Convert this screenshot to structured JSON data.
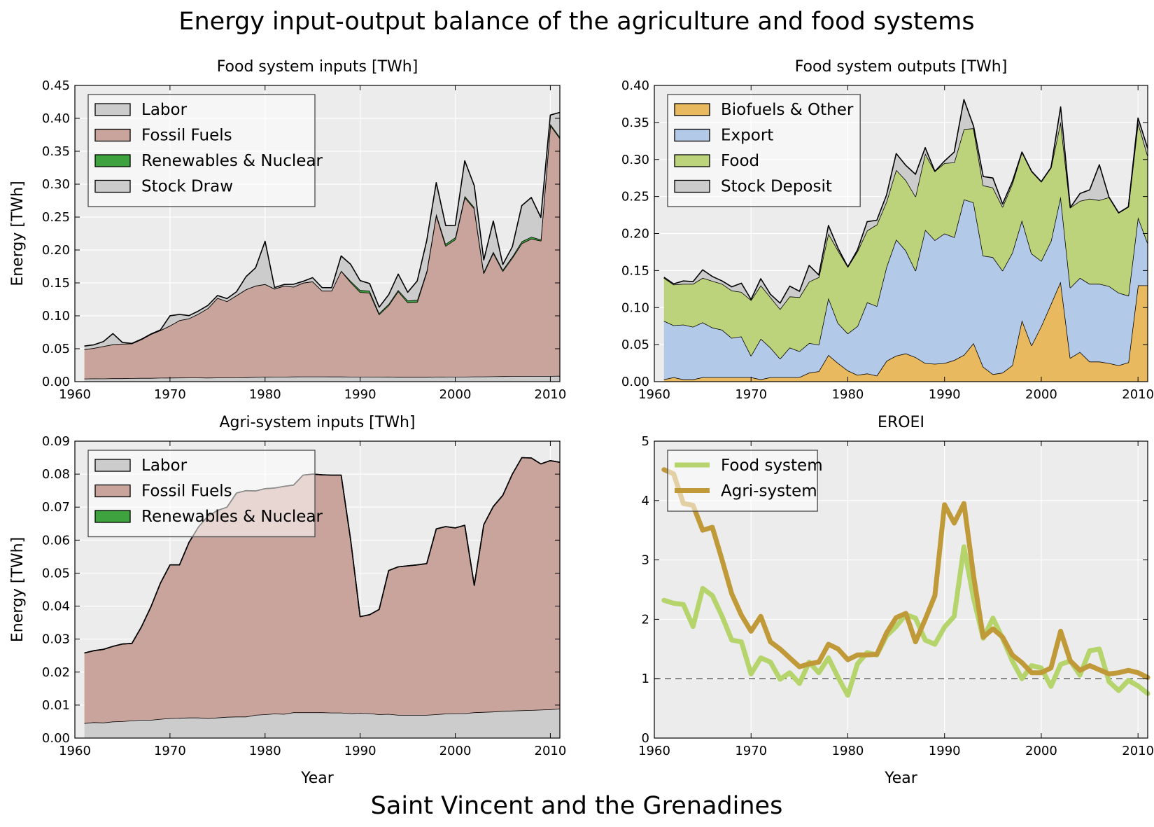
{
  "figure": {
    "title": "Energy input-output balance of the agriculture and food systems",
    "footer": "Saint Vincent and the Grenadines"
  },
  "chart_data": [
    {
      "type": "area",
      "title": "Food system inputs [TWh]",
      "xlabel": "",
      "ylabel": "Energy [TWh]",
      "xlim": [
        1960,
        2011
      ],
      "ylim": [
        0,
        0.45
      ],
      "xticks": [
        1960,
        1970,
        1980,
        1990,
        2000,
        2010
      ],
      "yticks": [
        "0.00",
        "0.05",
        "0.10",
        "0.15",
        "0.20",
        "0.25",
        "0.30",
        "0.35",
        "0.40",
        "0.45"
      ],
      "stacked": true,
      "legend_position": "upper-left",
      "x": [
        1961,
        1962,
        1963,
        1964,
        1965,
        1966,
        1967,
        1968,
        1969,
        1970,
        1971,
        1972,
        1973,
        1974,
        1975,
        1976,
        1977,
        1978,
        1979,
        1980,
        1981,
        1982,
        1983,
        1984,
        1985,
        1986,
        1987,
        1988,
        1989,
        1990,
        1991,
        1992,
        1993,
        1994,
        1995,
        1996,
        1997,
        1998,
        1999,
        2000,
        2001,
        2002,
        2003,
        2004,
        2005,
        2006,
        2007,
        2008,
        2009,
        2010,
        2011
      ],
      "series": [
        {
          "name": "Labor",
          "color": "#cccccc",
          "values": [
            0.0045,
            0.0048,
            0.0047,
            0.005,
            0.005,
            0.0053,
            0.0055,
            0.0055,
            0.0058,
            0.006,
            0.0061,
            0.0062,
            0.0062,
            0.006,
            0.0062,
            0.0063,
            0.0064,
            0.0065,
            0.007,
            0.0072,
            0.0073,
            0.0073,
            0.0077,
            0.0078,
            0.0078,
            0.0078,
            0.0077,
            0.0077,
            0.0075,
            0.0075,
            0.0075,
            0.0072,
            0.0073,
            0.007,
            0.007,
            0.007,
            0.007,
            0.0072,
            0.0074,
            0.0075,
            0.0075,
            0.0078,
            0.0078,
            0.008,
            0.0082,
            0.0083,
            0.0084,
            0.0085,
            0.0085,
            0.0085,
            0.0087
          ]
        },
        {
          "name": "Fossil Fuels",
          "color": "#c9a49c",
          "values": [
            0.0445,
            0.0462,
            0.049,
            0.0515,
            0.0525,
            0.0525,
            0.0585,
            0.0665,
            0.0722,
            0.079,
            0.087,
            0.0898,
            0.0968,
            0.1055,
            0.1208,
            0.1157,
            0.1246,
            0.1335,
            0.1385,
            0.1408,
            0.1337,
            0.1382,
            0.1363,
            0.1422,
            0.1442,
            0.1302,
            0.1303,
            0.1605,
            0.1435,
            0.1285,
            0.1275,
            0.0948,
            0.1087,
            0.1303,
            0.1133,
            0.114,
            0.1595,
            0.2458,
            0.1988,
            0.2085,
            0.2725,
            0.2552,
            0.157,
            0.1875,
            0.1598,
            0.1797,
            0.2016,
            0.2085,
            0.2055,
            0.381,
            0.361
          ]
        },
        {
          "name": "Renewables & Nuclear",
          "color": "#3ea33e",
          "values": [
            0.0001,
            0.0001,
            0.0001,
            0.0001,
            0.0001,
            0.0001,
            0.0001,
            0.0001,
            0.0001,
            0.0001,
            0.0001,
            0.0001,
            0.0001,
            0.0001,
            0.0001,
            0.0001,
            0.0001,
            0.0001,
            0.0002,
            0.0002,
            0.0002,
            0.0002,
            0.0002,
            0.0002,
            0.0002,
            0.0002,
            0.0002,
            0.0003,
            0.002,
            0.003,
            0.003,
            0.002,
            0.002,
            0.002,
            0.003,
            0.003,
            0.002,
            0.002,
            0.003,
            0.003,
            0.002,
            0.002,
            0.002,
            0.002,
            0.002,
            0.002,
            0.003,
            0.003,
            0.002,
            0.002,
            0.002
          ]
        },
        {
          "name": "Stock Draw",
          "color": "#cccccc",
          "values": [
            0.0049,
            0.0049,
            0.0072,
            0.0164,
            0.002,
            0.0002,
            0.0004,
            0.0002,
            0.0005,
            0.015,
            0.0089,
            0.0042,
            0.0042,
            0.0042,
            0.0037,
            0.0041,
            0.0055,
            0.0195,
            0.0273,
            0.0651,
            0.0018,
            0.002,
            0.0038,
            0.0022,
            0.0058,
            0.0047,
            0.0046,
            0.0225,
            0.0252,
            0.0145,
            0.011,
            0.0092,
            0.014,
            0.0241,
            0.0124,
            0.029,
            0.046,
            0.0473,
            0.0278,
            0.0183,
            0.0536,
            0.0328,
            0.018,
            0.0465,
            0.008,
            0.0149,
            0.0545,
            0.0598,
            0.0335,
            0.0135,
            0.0373
          ]
        }
      ]
    },
    {
      "type": "area",
      "title": "Food system outputs [TWh]",
      "xlabel": "",
      "ylabel": "",
      "xlim": [
        1960,
        2011
      ],
      "ylim": [
        0,
        0.4
      ],
      "xticks": [
        1960,
        1970,
        1980,
        1990,
        2000,
        2010
      ],
      "yticks": [
        "0.00",
        "0.05",
        "0.10",
        "0.15",
        "0.20",
        "0.25",
        "0.30",
        "0.35",
        "0.40"
      ],
      "stacked": true,
      "legend_position": "upper-left",
      "x": [
        1961,
        1962,
        1963,
        1964,
        1965,
        1966,
        1967,
        1968,
        1969,
        1970,
        1971,
        1972,
        1973,
        1974,
        1975,
        1976,
        1977,
        1978,
        1979,
        1980,
        1981,
        1982,
        1983,
        1984,
        1985,
        1986,
        1987,
        1988,
        1989,
        1990,
        1991,
        1992,
        1993,
        1994,
        1995,
        1996,
        1997,
        1998,
        1999,
        2000,
        2001,
        2002,
        2003,
        2004,
        2005,
        2006,
        2007,
        2008,
        2009,
        2010,
        2011
      ],
      "series": [
        {
          "name": "Biofuels & Other",
          "color": "#e8b95e",
          "values": [
            0.003,
            0.006,
            0.003,
            0.003,
            0.006,
            0.006,
            0.006,
            0.006,
            0.006,
            0.006,
            0.003,
            0.006,
            0.006,
            0.006,
            0.006,
            0.012,
            0.014,
            0.036,
            0.025,
            0.015,
            0.009,
            0.011,
            0.008,
            0.028,
            0.035,
            0.038,
            0.033,
            0.025,
            0.024,
            0.025,
            0.029,
            0.036,
            0.052,
            0.02,
            0.01,
            0.012,
            0.022,
            0.083,
            0.049,
            0.075,
            0.105,
            0.135,
            0.032,
            0.04,
            0.027,
            0.027,
            0.025,
            0.022,
            0.026,
            0.13,
            0.13
          ]
        },
        {
          "name": "Export",
          "color": "#b3c9e8",
          "values": [
            0.079,
            0.07,
            0.074,
            0.071,
            0.074,
            0.067,
            0.064,
            0.053,
            0.055,
            0.029,
            0.055,
            0.04,
            0.025,
            0.04,
            0.035,
            0.04,
            0.036,
            0.077,
            0.054,
            0.05,
            0.066,
            0.096,
            0.094,
            0.127,
            0.157,
            0.139,
            0.117,
            0.18,
            0.167,
            0.175,
            0.166,
            0.21,
            0.19,
            0.15,
            0.158,
            0.138,
            0.152,
            0.135,
            0.124,
            0.088,
            0.085,
            0.115,
            0.095,
            0.1,
            0.105,
            0.105,
            0.104,
            0.098,
            0.09,
            0.092,
            0.057
          ]
        },
        {
          "name": "Food",
          "color": "#bcd27b",
          "values": [
            0.058,
            0.055,
            0.055,
            0.058,
            0.06,
            0.063,
            0.062,
            0.064,
            0.06,
            0.075,
            0.072,
            0.068,
            0.067,
            0.069,
            0.073,
            0.083,
            0.091,
            0.087,
            0.098,
            0.09,
            0.101,
            0.097,
            0.11,
            0.088,
            0.094,
            0.095,
            0.1,
            0.103,
            0.093,
            0.095,
            0.101,
            0.095,
            0.1,
            0.095,
            0.094,
            0.086,
            0.093,
            0.092,
            0.111,
            0.107,
            0.099,
            0.101,
            0.108,
            0.104,
            0.115,
            0.113,
            0.12,
            0.108,
            0.12,
            0.128,
            0.118
          ]
        },
        {
          "name": "Stock Deposit",
          "color": "#cccccc",
          "values": [
            0.001,
            0.001,
            0.004,
            0.003,
            0.011,
            0.006,
            0.004,
            0.005,
            0.012,
            0.001,
            0.009,
            0.004,
            0.008,
            0.014,
            0.008,
            0.022,
            0.003,
            0.011,
            0.003,
            0.0,
            0.002,
            0.012,
            0.006,
            0.009,
            0.022,
            0.02,
            0.03,
            0.008,
            0.0,
            0.003,
            0.014,
            0.04,
            0.003,
            0.012,
            0.013,
            0.004,
            0.003,
            0.0,
            0.0,
            0.0,
            0.0,
            0.02,
            0.0,
            0.01,
            0.012,
            0.048,
            0.0,
            0.0,
            0.0,
            0.006,
            0.01
          ]
        }
      ]
    },
    {
      "type": "area",
      "title": "Agri-system inputs [TWh]",
      "xlabel": "Year",
      "ylabel": "Energy [TWh]",
      "xlim": [
        1960,
        2011
      ],
      "ylim": [
        0,
        0.09
      ],
      "xticks": [
        1960,
        1970,
        1980,
        1990,
        2000,
        2010
      ],
      "yticks": [
        "0.00",
        "0.01",
        "0.02",
        "0.03",
        "0.04",
        "0.05",
        "0.06",
        "0.07",
        "0.08",
        "0.09"
      ],
      "stacked": true,
      "legend_position": "upper-left",
      "x": [
        1961,
        1962,
        1963,
        1964,
        1965,
        1966,
        1967,
        1968,
        1969,
        1970,
        1971,
        1972,
        1973,
        1974,
        1975,
        1976,
        1977,
        1978,
        1979,
        1980,
        1981,
        1982,
        1983,
        1984,
        1985,
        1986,
        1987,
        1988,
        1989,
        1990,
        1991,
        1992,
        1993,
        1994,
        1995,
        1996,
        1997,
        1998,
        1999,
        2000,
        2001,
        2002,
        2003,
        2004,
        2005,
        2006,
        2007,
        2008,
        2009,
        2010,
        2011
      ],
      "series": [
        {
          "name": "Labor",
          "color": "#cccccc",
          "values": [
            0.0045,
            0.0048,
            0.0047,
            0.005,
            0.0051,
            0.0053,
            0.0055,
            0.0055,
            0.0058,
            0.006,
            0.0061,
            0.0062,
            0.0062,
            0.006,
            0.0062,
            0.0064,
            0.0065,
            0.0065,
            0.007,
            0.0072,
            0.0074,
            0.0073,
            0.0078,
            0.0078,
            0.0078,
            0.0078,
            0.0077,
            0.0077,
            0.0075,
            0.0076,
            0.0075,
            0.0072,
            0.0073,
            0.007,
            0.007,
            0.007,
            0.007,
            0.0072,
            0.0074,
            0.0075,
            0.0075,
            0.0078,
            0.0079,
            0.008,
            0.0082,
            0.0083,
            0.0084,
            0.0085,
            0.0086,
            0.0087,
            0.0089
          ]
        },
        {
          "name": "Fossil Fuels",
          "color": "#c9a49c",
          "values": [
            0.0213,
            0.0217,
            0.0222,
            0.0228,
            0.0234,
            0.0234,
            0.0282,
            0.0343,
            0.0412,
            0.0465,
            0.0464,
            0.0531,
            0.0578,
            0.0613,
            0.0628,
            0.0636,
            0.0678,
            0.0685,
            0.0679,
            0.0684,
            0.0684,
            0.069,
            0.0689,
            0.0719,
            0.0722,
            0.072,
            0.072,
            0.072,
            0.0525,
            0.0292,
            0.0299,
            0.0318,
            0.0435,
            0.0449,
            0.0452,
            0.0455,
            0.0459,
            0.0562,
            0.0567,
            0.0562,
            0.057,
            0.0385,
            0.0568,
            0.0622,
            0.0654,
            0.0717,
            0.0766,
            0.0764,
            0.0745,
            0.0754,
            0.0747
          ]
        },
        {
          "name": "Renewables & Nuclear",
          "color": "#3ea33e",
          "values": [
            0,
            0,
            0,
            0,
            0,
            0,
            0,
            0,
            0,
            0,
            0,
            0,
            0,
            0,
            0,
            0,
            0,
            0,
            0,
            0,
            0,
            0,
            0,
            0,
            0,
            0,
            0,
            0,
            0,
            0,
            0,
            0,
            0,
            0,
            0,
            0,
            0,
            0,
            0,
            0,
            0,
            0,
            0,
            0,
            0,
            0,
            0,
            0,
            0,
            0,
            0
          ]
        }
      ]
    },
    {
      "type": "line",
      "title": "EROEI",
      "xlabel": "Year",
      "ylabel": "",
      "xlim": [
        1960,
        2011
      ],
      "ylim": [
        0,
        5
      ],
      "xticks": [
        1960,
        1970,
        1980,
        1990,
        2000,
        2010
      ],
      "yticks": [
        "0",
        "1",
        "2",
        "3",
        "4",
        "5"
      ],
      "reference_line": 1,
      "legend_position": "upper-left",
      "x": [
        1961,
        1962,
        1963,
        1964,
        1965,
        1966,
        1967,
        1968,
        1969,
        1970,
        1971,
        1972,
        1973,
        1974,
        1975,
        1976,
        1977,
        1978,
        1979,
        1980,
        1981,
        1982,
        1983,
        1984,
        1985,
        1986,
        1987,
        1988,
        1989,
        1990,
        1991,
        1992,
        1993,
        1994,
        1995,
        1996,
        1997,
        1998,
        1999,
        2000,
        2001,
        2002,
        2003,
        2004,
        2005,
        2006,
        2007,
        2008,
        2009,
        2010,
        2011
      ],
      "series": [
        {
          "name": "Food system",
          "color": "#b5d46c",
          "values": [
            2.32,
            2.27,
            2.25,
            1.88,
            2.52,
            2.4,
            2.05,
            1.65,
            1.62,
            1.08,
            1.35,
            1.28,
            0.99,
            1.1,
            0.92,
            1.28,
            1.1,
            1.35,
            1.02,
            0.72,
            1.25,
            1.44,
            1.4,
            1.72,
            1.88,
            2.08,
            2.02,
            1.65,
            1.58,
            1.87,
            2.05,
            3.22,
            2.35,
            1.68,
            2.02,
            1.68,
            1.3,
            1.0,
            1.22,
            1.18,
            0.87,
            1.24,
            1.3,
            1.06,
            1.47,
            1.5,
            0.95,
            0.8,
            0.97,
            0.88,
            0.75
          ]
        },
        {
          "name": "Agri-system",
          "color": "#c09a39",
          "values": [
            4.52,
            4.45,
            3.95,
            3.92,
            3.5,
            3.55,
            3.0,
            2.43,
            2.07,
            1.8,
            2.05,
            1.62,
            1.5,
            1.35,
            1.2,
            1.25,
            1.28,
            1.58,
            1.5,
            1.32,
            1.4,
            1.4,
            1.41,
            1.77,
            2.03,
            2.1,
            1.62,
            2.0,
            2.4,
            3.93,
            3.62,
            3.95,
            2.73,
            1.7,
            1.84,
            1.7,
            1.4,
            1.27,
            1.1,
            1.1,
            1.18,
            1.8,
            1.3,
            1.14,
            1.22,
            1.15,
            1.08,
            1.1,
            1.14,
            1.1,
            1.02
          ]
        }
      ]
    }
  ]
}
